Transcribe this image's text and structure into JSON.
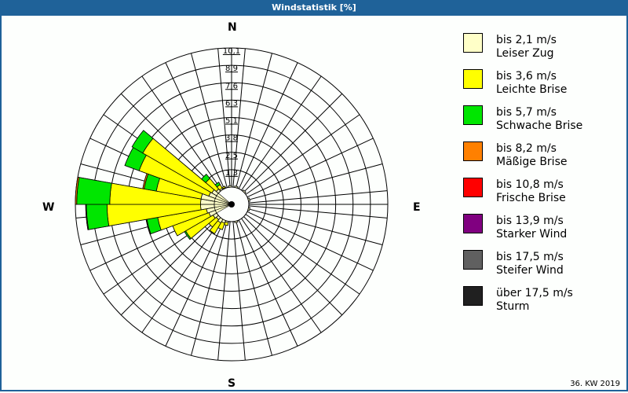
{
  "title": "Windstatistik [%]",
  "footer": "36. KW 2019",
  "directions": {
    "n": "N",
    "e": "E",
    "s": "S",
    "w": "W"
  },
  "legend": [
    {
      "range": "bis 2,1 m/s",
      "name": "Leiser Zug",
      "color": "#ffffc8"
    },
    {
      "range": "bis 3,6 m/s",
      "name": "Leichte Brise",
      "color": "#ffff00"
    },
    {
      "range": "bis 5,7 m/s",
      "name": "Schwache Brise",
      "color": "#00e600"
    },
    {
      "range": "bis 8,2 m/s",
      "name": "Mäßige Brise",
      "color": "#ff8000"
    },
    {
      "range": "bis 10,8 m/s",
      "name": "Frische Brise",
      "color": "#ff0000"
    },
    {
      "range": "bis 13,9 m/s",
      "name": "Starker Wind",
      "color": "#800080"
    },
    {
      "range": "bis 17,5 m/s",
      "name": "Steifer Wind",
      "color": "#606060"
    },
    {
      "range": "über 17,5 m/s",
      "name": "Sturm",
      "color": "#202020"
    }
  ],
  "chart_data": {
    "type": "wind-rose",
    "title": "Windstatistik [%]",
    "subtitle": "36. KW 2019",
    "radial_ticks": [
      "1,3",
      "2,5",
      "3,8",
      "5,1",
      "6,3",
      "7,6",
      "8,9",
      "10,1"
    ],
    "radial_max": 10.1,
    "sector_width_deg": 10,
    "bands": [
      "bis 2,1 m/s",
      "bis 3,6 m/s",
      "bis 5,7 m/s",
      "bis 8,2 m/s",
      "bis 10,8 m/s",
      "bis 13,9 m/s",
      "bis 17,5 m/s",
      "über 17,5 m/s"
    ],
    "sectors": [
      {
        "dir": 225,
        "values": [
          0.2,
          0.7,
          0.0,
          0.0
        ]
      },
      {
        "dir": 235,
        "values": [
          0.3,
          2.3,
          0.1,
          0.0
        ]
      },
      {
        "dir": 245,
        "values": [
          0.5,
          2.8,
          0.0,
          0.0
        ]
      },
      {
        "dir": 255,
        "values": [
          0.6,
          3.6,
          0.8,
          0.05
        ]
      },
      {
        "dir": 265,
        "values": [
          1.0,
          6.8,
          1.5,
          0.05
        ]
      },
      {
        "dir": 275,
        "values": [
          1.0,
          6.6,
          2.4,
          0.1
        ]
      },
      {
        "dir": 285,
        "values": [
          1.0,
          3.3,
          0.9,
          0.1
        ]
      },
      {
        "dir": 295,
        "values": [
          0.5,
          5.4,
          1.1,
          0.0
        ]
      },
      {
        "dir": 305,
        "values": [
          0.4,
          5.8,
          0.9,
          0.0
        ]
      },
      {
        "dir": 315,
        "values": [
          0.2,
          1.0,
          0.4,
          0.0
        ]
      },
      {
        "dir": 325,
        "values": [
          0.1,
          0.3,
          0.2,
          0.0
        ]
      },
      {
        "dir": 335,
        "values": [
          0.05,
          0.1,
          0.0,
          0.0
        ]
      },
      {
        "dir": 215,
        "values": [
          0.3,
          0.9,
          0.0,
          0.0
        ]
      },
      {
        "dir": 205,
        "values": [
          0.2,
          0.5,
          0.0,
          0.0
        ]
      },
      {
        "dir": 195,
        "values": [
          0.1,
          0.2,
          0.0,
          0.0
        ]
      },
      {
        "dir": 45,
        "values": [
          0.1,
          0.0,
          0.0,
          0.0
        ]
      },
      {
        "dir": 75,
        "values": [
          0.1,
          0.0,
          0.0,
          0.0
        ]
      },
      {
        "dir": 105,
        "values": [
          0.1,
          0.0,
          0.0,
          0.0
        ]
      },
      {
        "dir": 165,
        "values": [
          0.1,
          0.0,
          0.0,
          0.0
        ]
      },
      {
        "dir": 355,
        "values": [
          0.1,
          0.0,
          0.0,
          0.0
        ]
      },
      {
        "dir": 15,
        "values": [
          0.1,
          0.0,
          0.0,
          0.0
        ]
      }
    ],
    "legend_position": "right"
  }
}
